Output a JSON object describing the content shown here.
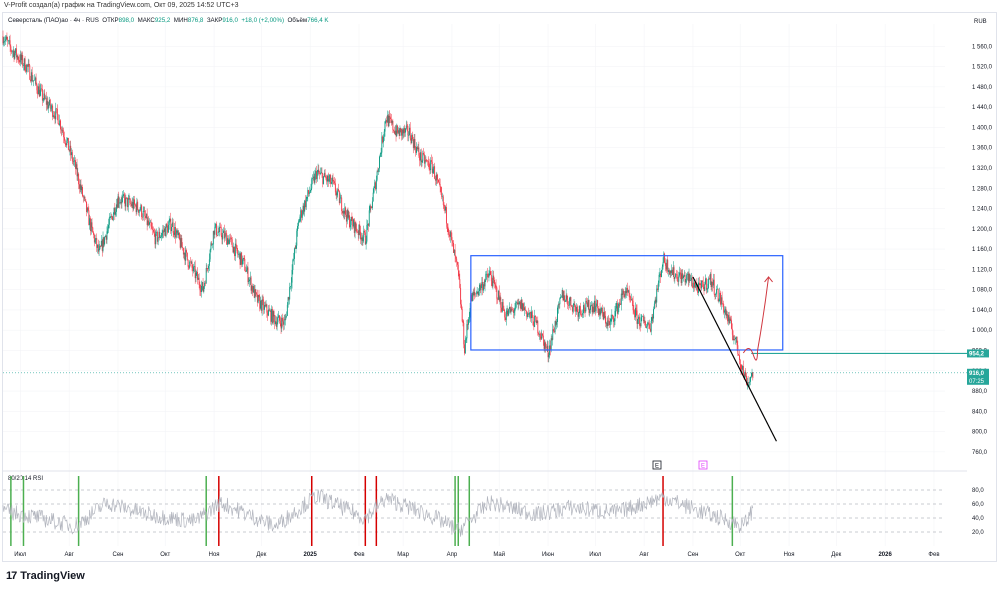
{
  "header": {
    "credit": "V-Profit создал(а) график на TradingView.com, Окт 09, 2025 14:52 UTC+3"
  },
  "symbol": {
    "name": "Северсталь (ПАО)ао · 4ч · RUS",
    "open_label": "ОТКР",
    "open": "898,0",
    "high_label": "МАКС",
    "high": "925,2",
    "low_label": "МИН",
    "low": "876,8",
    "close_label": "ЗАКР",
    "close": "916,0",
    "change": "+18,0 (+2,00%)",
    "volume_label": "Объём",
    "volume": "766,4 K"
  },
  "currency": "RUB",
  "rsi": {
    "label": "80/20 14 RSI",
    "ticks": [
      "80,0",
      "60,0",
      "40,0",
      "20,0"
    ],
    "ylim": [
      0,
      100
    ]
  },
  "price_tags": {
    "level": "954,2",
    "last": "916,0",
    "countdown": "07:25"
  },
  "markers": {
    "earnings": "E",
    "event": "E"
  },
  "footer": {
    "brand": "TradingView"
  },
  "colors": {
    "up": "#089981",
    "down": "#f23645",
    "box": "#2962ff",
    "level": "#26a69a",
    "rsi_line": "#b2b5be",
    "drawn_arrow": "#d0373f"
  },
  "chart_data": {
    "type": "candlestick",
    "ylim": [
      742,
      1604
    ],
    "y_ticks": [
      "1 560,0",
      "1 520,0",
      "1 480,0",
      "1 440,0",
      "1 400,0",
      "1 360,0",
      "1 320,0",
      "1 280,0",
      "1 240,0",
      "1 200,0",
      "1 160,0",
      "1 120,0",
      "1 080,0",
      "1 040,0",
      "1 000,0",
      "960,0",
      "920,0",
      "880,0",
      "840,0",
      "800,0",
      "760,0"
    ],
    "x_labels": [
      "Июл",
      "Авг",
      "Сен",
      "Окт",
      "Ноя",
      "Дек",
      "2025",
      "Фев",
      "Мар",
      "Апр",
      "Май",
      "Июн",
      "Июл",
      "Авг",
      "Сен",
      "Окт",
      "Ноя",
      "Дек",
      "2026",
      "Фев"
    ],
    "price_path": [
      [
        "2024-06-20",
        1580
      ],
      [
        "2024-06-25",
        1555
      ],
      [
        "2024-07-05",
        1520
      ],
      [
        "2024-07-15",
        1460
      ],
      [
        "2024-07-25",
        1420
      ],
      [
        "2024-08-05",
        1320
      ],
      [
        "2024-08-15",
        1200
      ],
      [
        "2024-08-20",
        1150
      ],
      [
        "2024-09-01",
        1260
      ],
      [
        "2024-09-15",
        1240
      ],
      [
        "2024-09-25",
        1180
      ],
      [
        "2024-10-05",
        1210
      ],
      [
        "2024-10-15",
        1140
      ],
      [
        "2024-10-25",
        1080
      ],
      [
        "2024-11-01",
        1200
      ],
      [
        "2024-11-10",
        1180
      ],
      [
        "2024-11-20",
        1130
      ],
      [
        "2024-11-28",
        1060
      ],
      [
        "2024-12-10",
        1020
      ],
      [
        "2024-12-16",
        1015
      ],
      [
        "2024-12-25",
        1220
      ],
      [
        "2025-01-05",
        1310
      ],
      [
        "2025-01-15",
        1290
      ],
      [
        "2025-01-25",
        1220
      ],
      [
        "2025-02-05",
        1180
      ],
      [
        "2025-02-12",
        1300
      ],
      [
        "2025-02-18",
        1420
      ],
      [
        "2025-02-25",
        1390
      ],
      [
        "2025-03-05",
        1390
      ],
      [
        "2025-03-12",
        1340
      ],
      [
        "2025-03-20",
        1320
      ],
      [
        "2025-03-28",
        1230
      ],
      [
        "2025-04-05",
        1110
      ],
      [
        "2025-04-09",
        965
      ],
      [
        "2025-04-13",
        1060
      ],
      [
        "2025-04-25",
        1110
      ],
      [
        "2025-05-05",
        1030
      ],
      [
        "2025-05-15",
        1050
      ],
      [
        "2025-05-25",
        1010
      ],
      [
        "2025-06-01",
        955
      ],
      [
        "2025-06-10",
        1070
      ],
      [
        "2025-06-20",
        1040
      ],
      [
        "2025-07-01",
        1050
      ],
      [
        "2025-07-10",
        1010
      ],
      [
        "2025-07-20",
        1080
      ],
      [
        "2025-07-28",
        1020
      ],
      [
        "2025-08-05",
        1010
      ],
      [
        "2025-08-13",
        1140
      ],
      [
        "2025-08-20",
        1110
      ],
      [
        "2025-08-30",
        1100
      ],
      [
        "2025-09-05",
        1080
      ],
      [
        "2025-09-12",
        1100
      ],
      [
        "2025-09-20",
        1050
      ],
      [
        "2025-09-28",
        980
      ],
      [
        "2025-10-03",
        915
      ],
      [
        "2025-10-06",
        898
      ],
      [
        "2025-10-09",
        916
      ]
    ],
    "rsi_path": [
      [
        "2024-06-20",
        50
      ],
      [
        "2024-07-10",
        42
      ],
      [
        "2024-08-05",
        28
      ],
      [
        "2024-08-25",
        62
      ],
      [
        "2024-09-20",
        45
      ],
      [
        "2024-10-20",
        35
      ],
      [
        "2024-11-05",
        62
      ],
      [
        "2024-12-10",
        28
      ],
      [
        "2025-01-05",
        72
      ],
      [
        "2025-02-05",
        40
      ],
      [
        "2025-02-18",
        68
      ],
      [
        "2025-03-20",
        42
      ],
      [
        "2025-04-05",
        22
      ],
      [
        "2025-04-25",
        62
      ],
      [
        "2025-05-25",
        45
      ],
      [
        "2025-06-15",
        55
      ],
      [
        "2025-07-15",
        48
      ],
      [
        "2025-08-13",
        70
      ],
      [
        "2025-09-05",
        50
      ],
      [
        "2025-09-25",
        35
      ],
      [
        "2025-10-03",
        28
      ],
      [
        "2025-10-09",
        52
      ]
    ],
    "rsi_signals": [
      {
        "date": "2024-06-25",
        "type": "buy"
      },
      {
        "date": "2024-07-03",
        "type": "buy"
      },
      {
        "date": "2024-08-07",
        "type": "buy"
      },
      {
        "date": "2024-10-27",
        "type": "buy"
      },
      {
        "date": "2024-11-04",
        "type": "sell"
      },
      {
        "date": "2025-01-02",
        "type": "sell"
      },
      {
        "date": "2025-02-05",
        "type": "sell"
      },
      {
        "date": "2025-02-12",
        "type": "sell"
      },
      {
        "date": "2025-04-03",
        "type": "buy"
      },
      {
        "date": "2025-04-05",
        "type": "buy"
      },
      {
        "date": "2025-04-12",
        "type": "buy"
      },
      {
        "date": "2025-08-13",
        "type": "sell"
      },
      {
        "date": "2025-09-26",
        "type": "buy"
      }
    ],
    "range_box": {
      "from": "2025-04-13",
      "to": "2025-10-28",
      "top": 1147,
      "bottom": 961
    },
    "horizontal_level": 954.2,
    "trendline": [
      [
        "2025-09-01",
        1105
      ],
      [
        "2025-10-24",
        781
      ]
    ],
    "forecast_arrow": [
      [
        "2025-10-03",
        955
      ],
      [
        "2025-10-12",
        960
      ],
      [
        "2025-10-16",
        1030
      ],
      [
        "2025-10-19",
        1105
      ]
    ]
  }
}
